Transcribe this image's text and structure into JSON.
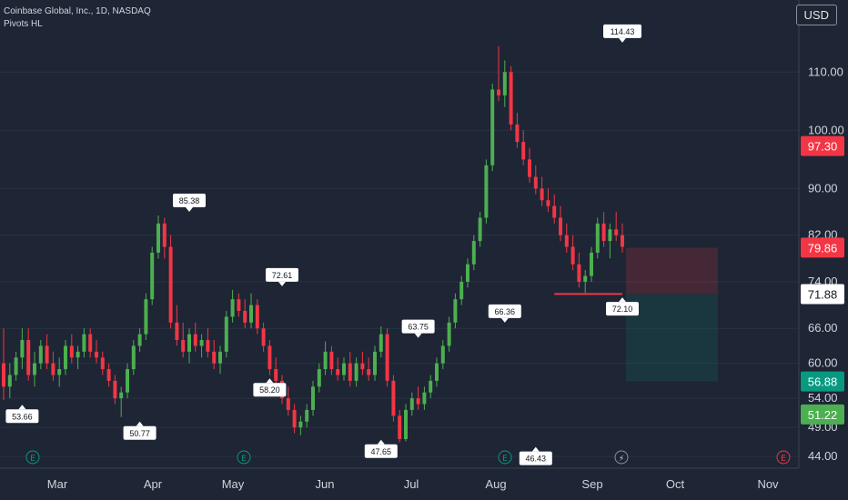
{
  "header": {
    "title": "Coinbase Global, Inc., 1D, NASDAQ",
    "indicator": "Pivots HL",
    "currency": "USD"
  },
  "colors": {
    "background": "#1e2534",
    "up": "#4caf50",
    "down": "#f23645",
    "axis_text": "#d1d4dc",
    "grid": "#2a3140"
  },
  "chart_data": {
    "type": "candlestick",
    "x_ticks": [
      "Mar",
      "Apr",
      "May",
      "Jun",
      "Jul",
      "Aug",
      "Sep",
      "Oct",
      "Nov"
    ],
    "y_ticks": [
      110.0,
      100.0,
      90.0,
      82.0,
      74.0,
      66.0,
      60.0,
      54.0,
      49.0,
      44.0
    ],
    "price_tags": [
      {
        "label": "97.30",
        "value": 97.3,
        "color": "#f23645"
      },
      {
        "label": "79.86",
        "value": 79.86,
        "color": "#f23645"
      },
      {
        "label": "71.88",
        "value": 71.88,
        "color": "#ffffff"
      },
      {
        "label": "56.88",
        "value": 56.88,
        "color": "#089981"
      },
      {
        "label": "51.22",
        "value": 51.22,
        "color": "#4caf50"
      }
    ],
    "pivots": [
      {
        "label": "53.66",
        "type": "low",
        "date_index": 3
      },
      {
        "label": "50.77",
        "type": "low",
        "date_index": 22
      },
      {
        "label": "85.38",
        "type": "high",
        "date_index": 30
      },
      {
        "label": "58.20",
        "type": "low",
        "date_index": 43
      },
      {
        "label": "72.61",
        "type": "high",
        "date_index": 45
      },
      {
        "label": "47.65",
        "type": "low",
        "date_index": 61
      },
      {
        "label": "63.75",
        "type": "high",
        "date_index": 67
      },
      {
        "label": "66.36",
        "type": "high",
        "date_index": 81
      },
      {
        "label": "46.43",
        "type": "low",
        "date_index": 86
      },
      {
        "label": "114.43",
        "type": "high",
        "date_index": 113
      },
      {
        "label": "72.10",
        "type": "low",
        "date_index": 141
      }
    ],
    "candles": [
      [
        60,
        66,
        53.66,
        56
      ],
      [
        56,
        60,
        54,
        58
      ],
      [
        58,
        62,
        57,
        61
      ],
      [
        61,
        66,
        59,
        64
      ],
      [
        64,
        66,
        57,
        58
      ],
      [
        58,
        62,
        56,
        60
      ],
      [
        60,
        64,
        59,
        63
      ],
      [
        63,
        65,
        59,
        60
      ],
      [
        60,
        62,
        57,
        58
      ],
      [
        58,
        61,
        56,
        59
      ],
      [
        59,
        64,
        58,
        63
      ],
      [
        63,
        65,
        60,
        61
      ],
      [
        61,
        63,
        59,
        62
      ],
      [
        62,
        66,
        61,
        65
      ],
      [
        65,
        66,
        61,
        62
      ],
      [
        62,
        64,
        60,
        61
      ],
      [
        61,
        62,
        58,
        59
      ],
      [
        59,
        60,
        56,
        57
      ],
      [
        57,
        58,
        53,
        54
      ],
      [
        54,
        56,
        50.77,
        55
      ],
      [
        55,
        60,
        54,
        59
      ],
      [
        59,
        64,
        58,
        63
      ],
      [
        63,
        66,
        62,
        65
      ],
      [
        65,
        72,
        64,
        71
      ],
      [
        71,
        80,
        70,
        79
      ],
      [
        79,
        85.38,
        78,
        84
      ],
      [
        84,
        85,
        78,
        80
      ],
      [
        80,
        82,
        66,
        67
      ],
      [
        67,
        70,
        63,
        64
      ],
      [
        64,
        67,
        61,
        62
      ],
      [
        62,
        66,
        60,
        65
      ],
      [
        65,
        67,
        62,
        63
      ],
      [
        63,
        65,
        61,
        64
      ],
      [
        64,
        66,
        61,
        62
      ],
      [
        62,
        64,
        59,
        60
      ],
      [
        60,
        63,
        58.2,
        62
      ],
      [
        62,
        69,
        61,
        68
      ],
      [
        68,
        72.61,
        67,
        71
      ],
      [
        71,
        72,
        68,
        69
      ],
      [
        69,
        71,
        66,
        67
      ],
      [
        67,
        72,
        66,
        70
      ],
      [
        70,
        71,
        65,
        66
      ],
      [
        66,
        67,
        62,
        63
      ],
      [
        63,
        64,
        58,
        59
      ],
      [
        59,
        61,
        56,
        57
      ],
      [
        57,
        58,
        53,
        54
      ],
      [
        54,
        56,
        51,
        52
      ],
      [
        52,
        53,
        48,
        49
      ],
      [
        49,
        51,
        47.65,
        50
      ],
      [
        50,
        53,
        49,
        52
      ],
      [
        52,
        57,
        51,
        56
      ],
      [
        56,
        60,
        55,
        59
      ],
      [
        59,
        63.75,
        58,
        62
      ],
      [
        62,
        63,
        58,
        59
      ],
      [
        59,
        61,
        57,
        58
      ],
      [
        58,
        61,
        57,
        60
      ],
      [
        60,
        62,
        56,
        57
      ],
      [
        57,
        61,
        56,
        60
      ],
      [
        60,
        62,
        58,
        59
      ],
      [
        59,
        61,
        57,
        58
      ],
      [
        58,
        63,
        57,
        62
      ],
      [
        62,
        66.36,
        61,
        65
      ],
      [
        65,
        66,
        56,
        57
      ],
      [
        57,
        58,
        50,
        51
      ],
      [
        51,
        52,
        46.43,
        47
      ],
      [
        47,
        53,
        46.6,
        52
      ],
      [
        52,
        55,
        51,
        54
      ],
      [
        54,
        56,
        52,
        53
      ],
      [
        53,
        56,
        52,
        55
      ],
      [
        55,
        58,
        54,
        57
      ],
      [
        57,
        61,
        56,
        60
      ],
      [
        60,
        64,
        59,
        63
      ],
      [
        63,
        68,
        62,
        67
      ],
      [
        67,
        72,
        66,
        71
      ],
      [
        71,
        75,
        70,
        74
      ],
      [
        74,
        78,
        73,
        77
      ],
      [
        77,
        82,
        76,
        81
      ],
      [
        81,
        86,
        80,
        85
      ],
      [
        85,
        95,
        84,
        94
      ],
      [
        94,
        108,
        93,
        107
      ],
      [
        107,
        114.43,
        105,
        106
      ],
      [
        106,
        112,
        104,
        110
      ],
      [
        110,
        111,
        100,
        101
      ],
      [
        101,
        103,
        97,
        98
      ],
      [
        98,
        100,
        94,
        95
      ],
      [
        95,
        97,
        91,
        92
      ],
      [
        92,
        94,
        89,
        90
      ],
      [
        90,
        92,
        87,
        88
      ],
      [
        88,
        90,
        86,
        87
      ],
      [
        87,
        89,
        84,
        85
      ],
      [
        85,
        87,
        81,
        82
      ],
      [
        82,
        84,
        79,
        80
      ],
      [
        80,
        82,
        76,
        77
      ],
      [
        77,
        79,
        73,
        74
      ],
      [
        74,
        76,
        72.1,
        75
      ],
      [
        75,
        80,
        74,
        79
      ],
      [
        79,
        85,
        78,
        84
      ],
      [
        84,
        86,
        80,
        81
      ],
      [
        81,
        84,
        78,
        83
      ],
      [
        83,
        86,
        81,
        82
      ],
      [
        82,
        84,
        79,
        80
      ]
    ],
    "position": {
      "entry": 71.88,
      "target": 56.88,
      "stop": 79.86
    },
    "events": [
      "E",
      "E",
      "E",
      "lightning",
      "E"
    ]
  }
}
